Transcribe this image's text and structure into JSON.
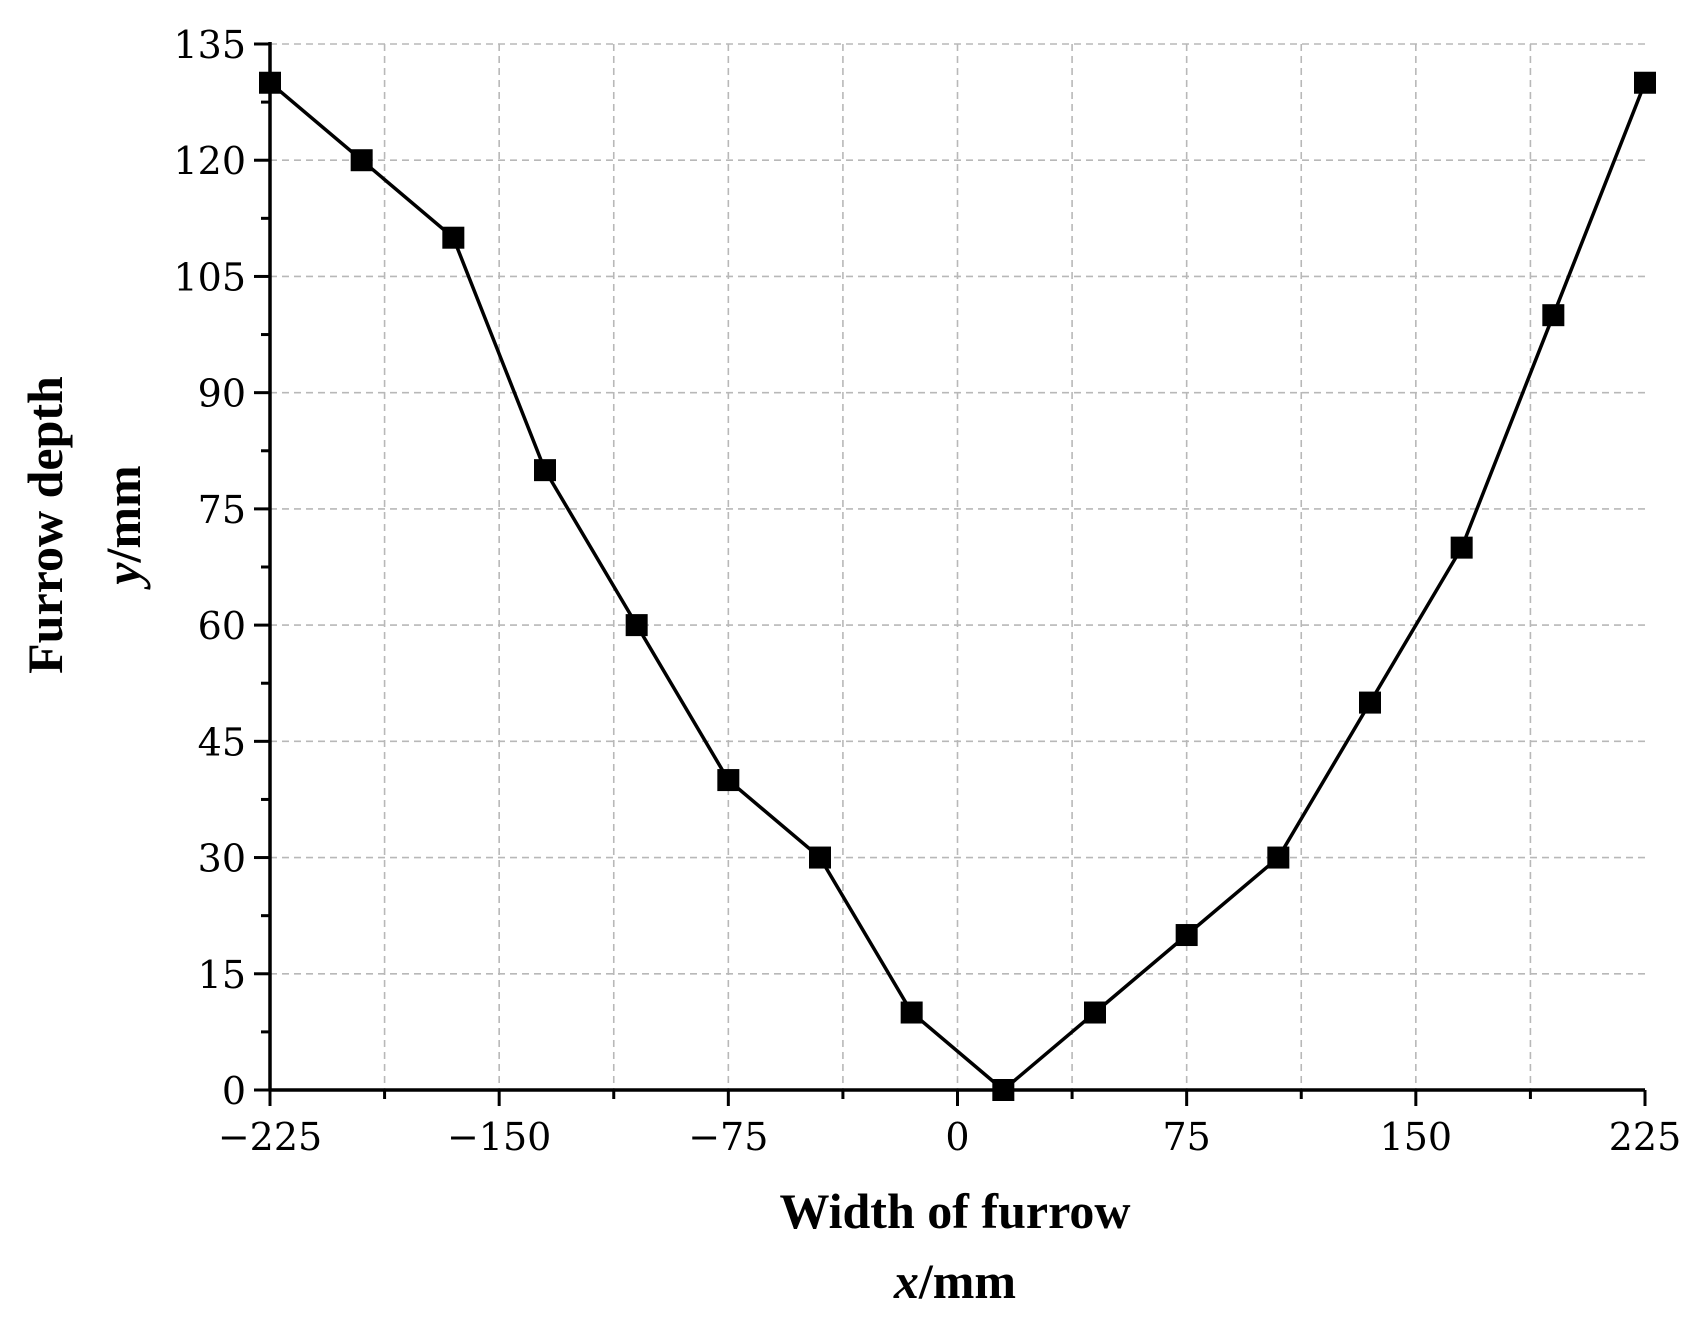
{
  "chart_data": {
    "type": "line",
    "x_axis": {
      "title": "Width of furrow",
      "unit_var": "x",
      "unit_rest": "/mm",
      "range": [
        -225,
        225
      ],
      "ticks": [
        -225,
        -150,
        -75,
        0,
        75,
        150,
        225
      ],
      "tick_labels": [
        "−225",
        "−150",
        "−75",
        "0",
        "75",
        "150",
        "225"
      ]
    },
    "y_axis": {
      "title": "Furrow depth",
      "unit_var": "y",
      "unit_rest": "/mm",
      "range": [
        0,
        135
      ],
      "ticks": [
        0,
        15,
        30,
        45,
        60,
        75,
        90,
        105,
        120,
        135
      ],
      "tick_labels": [
        "0",
        "15",
        "30",
        "45",
        "60",
        "75",
        "90",
        "105",
        "120",
        "135"
      ]
    },
    "grid": true,
    "grid_style": "dashed",
    "line_color": "#000000",
    "marker": "square",
    "series": [
      {
        "x": [
          -225,
          -195,
          -165,
          -135,
          -105,
          -75,
          -45,
          -15,
          15,
          45,
          75,
          105,
          135,
          165,
          195,
          225
        ],
        "y": [
          130,
          120,
          110,
          80,
          60,
          40,
          30,
          10,
          0,
          10,
          20,
          30,
          50,
          70,
          100,
          130
        ]
      }
    ]
  }
}
